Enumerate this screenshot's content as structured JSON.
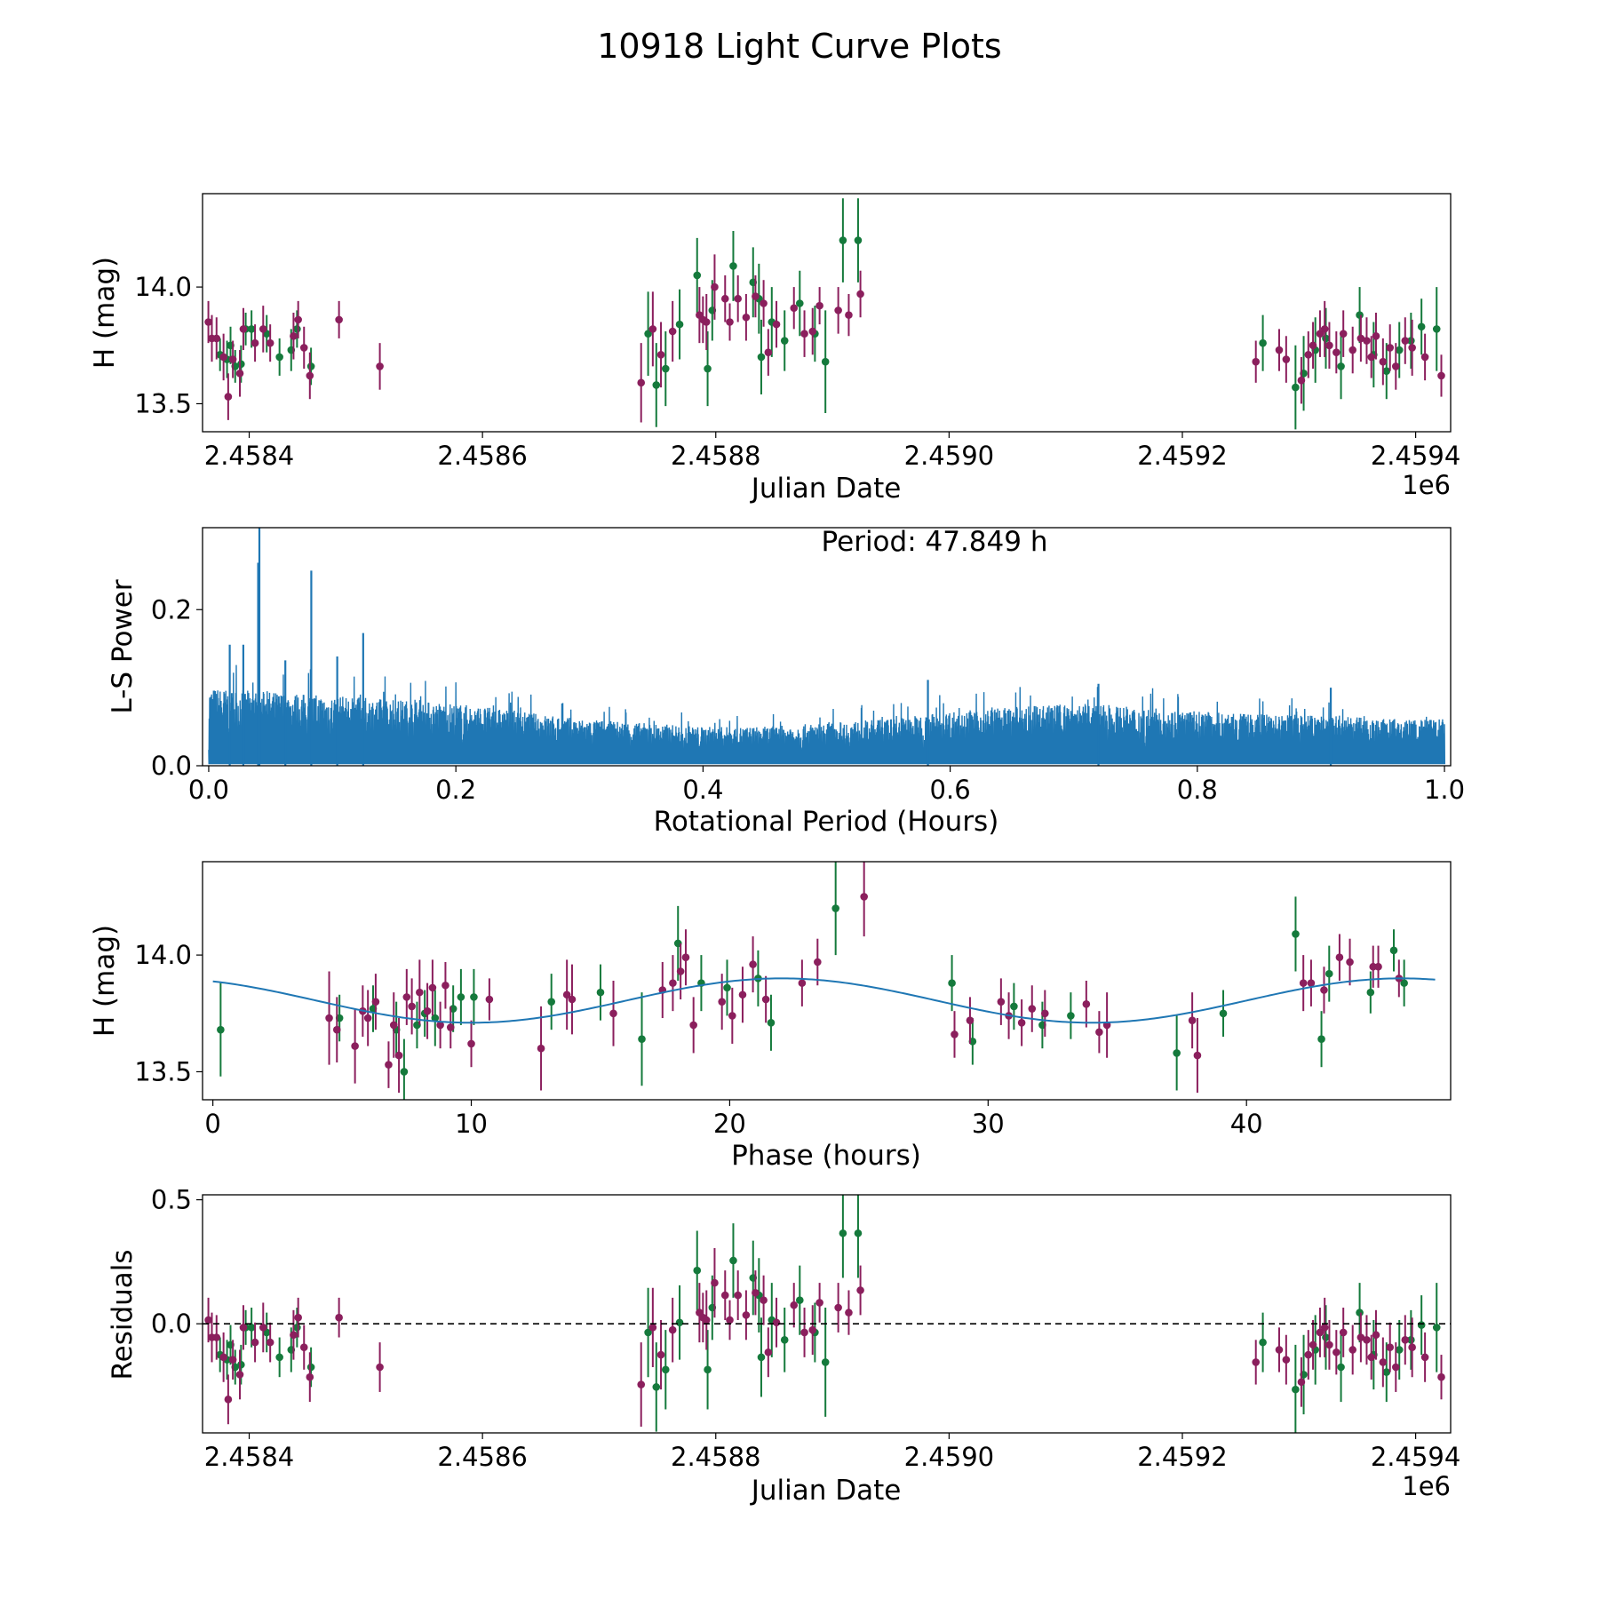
{
  "figure": {
    "suptitle": "10918 Light Curve Plots"
  },
  "colors": {
    "filter_a": "#8b1f5d",
    "filter_b": "#157a3c",
    "model": "#1f77b4",
    "axis": "#000000",
    "background": "#ffffff"
  },
  "chart_data": [
    {
      "id": "lightcurve",
      "type": "scatter",
      "title": "",
      "xlabel": "Julian Date",
      "ylabel": "H (mag)",
      "x_offset_label": "1e6",
      "xlim": [
        2.45836,
        2.45943
      ],
      "ylim": [
        13.38,
        14.4
      ],
      "xticks": [
        2.4584,
        2.4586,
        2.4588,
        2.459,
        2.4592,
        2.4594
      ],
      "xtick_labels": [
        "2.4584",
        "2.4586",
        "2.4588",
        "2.4590",
        "2.4592",
        "2.4594"
      ],
      "yticks": [
        13.5,
        14.0
      ],
      "ytick_labels": [
        "13.5",
        "14.0"
      ],
      "series": [
        {
          "name": "filter_a",
          "x": [
            2.458365,
            2.458368,
            2.458372,
            2.458378,
            2.458382,
            2.458386,
            2.458392,
            2.458395,
            2.458405,
            2.458412,
            2.458418,
            2.458438,
            2.458442,
            2.458447,
            2.458452,
            2.458477,
            2.458512,
            2.458736,
            2.458746,
            2.458753,
            2.458763,
            2.458786,
            2.458789,
            2.458792,
            2.458799,
            2.458808,
            2.458812,
            2.458819,
            2.458826,
            2.458834,
            2.458841,
            2.458845,
            2.458852,
            2.458867,
            2.458876,
            2.458883,
            2.458889,
            2.458905,
            2.458914,
            2.458924,
            2.459263,
            2.459283,
            2.459289,
            2.459302,
            2.459308,
            2.459312,
            2.459318,
            2.459322,
            2.459326,
            2.459332,
            2.459338,
            2.459346,
            2.459353,
            2.459358,
            2.459362,
            2.459366,
            2.459372,
            2.459378,
            2.459383,
            2.459391,
            2.459397,
            2.459408,
            2.459422
          ],
          "y": [
            13.85,
            13.78,
            13.78,
            13.7,
            13.53,
            13.69,
            13.63,
            13.82,
            13.76,
            13.82,
            13.76,
            13.79,
            13.86,
            13.74,
            13.62,
            13.86,
            13.66,
            13.59,
            13.82,
            13.71,
            13.81,
            13.88,
            13.86,
            13.85,
            14.0,
            13.95,
            13.85,
            13.95,
            13.87,
            13.96,
            13.93,
            13.72,
            13.84,
            13.91,
            13.8,
            13.81,
            13.92,
            13.9,
            13.88,
            13.97,
            13.68,
            13.73,
            13.69,
            13.6,
            13.71,
            13.75,
            13.8,
            13.82,
            13.75,
            13.72,
            13.8,
            13.73,
            13.78,
            13.77,
            13.7,
            13.79,
            13.68,
            13.74,
            13.66,
            13.77,
            13.74,
            13.7,
            13.62
          ],
          "err": [
            0.09,
            0.1,
            0.09,
            0.1,
            0.1,
            0.08,
            0.1,
            0.09,
            0.08,
            0.1,
            0.08,
            0.1,
            0.08,
            0.09,
            0.1,
            0.08,
            0.1,
            0.17,
            0.16,
            0.14,
            0.13,
            0.12,
            0.1,
            0.12,
            0.14,
            0.1,
            0.08,
            0.1,
            0.1,
            0.09,
            0.1,
            0.1,
            0.1,
            0.09,
            0.1,
            0.1,
            0.08,
            0.1,
            0.09,
            0.1,
            0.09,
            0.09,
            0.1,
            0.1,
            0.1,
            0.1,
            0.1,
            0.12,
            0.1,
            0.09,
            0.1,
            0.1,
            0.1,
            0.1,
            0.09,
            0.1,
            0.1,
            0.1,
            0.1,
            0.1,
            0.12,
            0.1,
            0.09
          ]
        },
        {
          "name": "filter_b",
          "x": [
            2.458375,
            2.458381,
            2.458384,
            2.458388,
            2.458393,
            2.458397,
            2.458402,
            2.458415,
            2.458426,
            2.458436,
            2.458441,
            2.458453,
            2.458742,
            2.458749,
            2.458757,
            2.458769,
            2.458784,
            2.458793,
            2.458797,
            2.458815,
            2.458832,
            2.458837,
            2.458839,
            2.458848,
            2.458859,
            2.458872,
            2.458885,
            2.458894,
            2.458909,
            2.458922,
            2.459269,
            2.459297,
            2.459304,
            2.459314,
            2.459323,
            2.459336,
            2.459352,
            2.459364,
            2.459375,
            2.459386,
            2.459396,
            2.459405,
            2.459418
          ],
          "y": [
            13.71,
            13.69,
            13.75,
            13.66,
            13.67,
            13.82,
            13.82,
            13.8,
            13.7,
            13.73,
            13.82,
            13.66,
            13.8,
            13.58,
            13.65,
            13.84,
            14.05,
            13.65,
            13.9,
            14.09,
            14.02,
            13.95,
            13.7,
            13.85,
            13.77,
            13.93,
            13.8,
            13.68,
            14.2,
            14.2,
            13.76,
            13.57,
            13.63,
            13.73,
            13.78,
            13.66,
            13.88,
            13.71,
            13.64,
            13.73,
            13.77,
            13.83,
            13.82
          ],
          "err": [
            0.07,
            0.08,
            0.08,
            0.07,
            0.08,
            0.07,
            0.08,
            0.08,
            0.08,
            0.09,
            0.08,
            0.08,
            0.18,
            0.18,
            0.16,
            0.15,
            0.16,
            0.16,
            0.13,
            0.15,
            0.15,
            0.15,
            0.16,
            0.15,
            0.13,
            0.14,
            0.12,
            0.22,
            0.18,
            0.18,
            0.12,
            0.18,
            0.16,
            0.14,
            0.13,
            0.14,
            0.12,
            0.14,
            0.12,
            0.12,
            0.12,
            0.12,
            0.18
          ]
        }
      ]
    },
    {
      "id": "periodogram",
      "type": "line",
      "title": "",
      "annotation": "Period: 47.849 h",
      "xlabel": "Rotational Period (Hours)",
      "ylabel": "L-S Power",
      "xlim": [
        -0.005,
        1.005
      ],
      "ylim": [
        0.0,
        0.305
      ],
      "xticks": [
        0.0,
        0.2,
        0.4,
        0.6,
        0.8,
        1.0
      ],
      "xtick_labels": [
        "0.0",
        "0.2",
        "0.4",
        "0.6",
        "0.8",
        "1.0"
      ],
      "yticks": [
        0.0,
        0.2
      ],
      "ytick_labels": [
        "0.0",
        "0.2"
      ],
      "envelope_x": [
        0.0,
        0.05,
        0.1,
        0.15,
        0.2,
        0.25,
        0.3,
        0.35,
        0.4,
        0.45,
        0.5,
        0.55,
        0.6,
        0.65,
        0.7,
        0.75,
        0.8,
        0.85,
        0.9,
        0.95,
        1.0
      ],
      "envelope_y": [
        0.1,
        0.095,
        0.09,
        0.085,
        0.08,
        0.07,
        0.06,
        0.055,
        0.05,
        0.05,
        0.055,
        0.06,
        0.07,
        0.075,
        0.08,
        0.075,
        0.07,
        0.065,
        0.065,
        0.06,
        0.06
      ],
      "peaks_x": [
        0.041,
        0.04,
        0.083,
        0.125,
        0.017,
        0.028,
        0.104,
        0.062,
        0.582,
        0.72,
        0.908
      ],
      "peaks_y": [
        0.305,
        0.26,
        0.25,
        0.17,
        0.155,
        0.155,
        0.14,
        0.135,
        0.11,
        0.105,
        0.1
      ]
    },
    {
      "id": "phased",
      "type": "scatter",
      "title": "",
      "xlabel": "Phase (hours)",
      "ylabel": "H (mag)",
      "xlim": [
        -0.4,
        47.9
      ],
      "ylim": [
        13.38,
        14.4
      ],
      "xticks": [
        0,
        10,
        20,
        30,
        40
      ],
      "xtick_labels": [
        "0",
        "10",
        "20",
        "30",
        "40"
      ],
      "yticks": [
        13.5,
        14.0
      ],
      "ytick_labels": [
        "13.5",
        "14.0"
      ],
      "model": {
        "mean": 13.805,
        "amplitude": 0.095,
        "period": 24.0,
        "phase_shift": 22.0
      },
      "series": [
        {
          "name": "filter_a",
          "x": [
            4.5,
            4.8,
            5.5,
            5.8,
            6.0,
            6.3,
            6.8,
            7.0,
            7.2,
            7.5,
            7.7,
            8.0,
            8.3,
            8.5,
            8.8,
            9.0,
            9.2,
            10.0,
            10.7,
            12.7,
            13.7,
            13.9,
            15.5,
            17.4,
            17.8,
            18.1,
            18.3,
            18.6,
            19.7,
            20.1,
            20.5,
            20.9,
            21.4,
            22.8,
            23.4,
            25.2,
            28.7,
            29.3,
            30.5,
            30.8,
            31.3,
            31.7,
            32.2,
            33.8,
            34.3,
            34.6,
            37.9,
            38.1,
            42.2,
            42.5,
            43.0,
            43.6,
            44.0,
            44.9,
            45.1,
            45.9
          ],
          "y": [
            13.73,
            13.68,
            13.61,
            13.76,
            13.73,
            13.8,
            13.53,
            13.7,
            13.57,
            13.82,
            13.78,
            13.84,
            13.76,
            13.86,
            13.7,
            13.87,
            13.69,
            13.62,
            13.81,
            13.6,
            13.83,
            13.81,
            13.75,
            13.85,
            13.88,
            13.93,
            13.99,
            13.7,
            13.8,
            13.74,
            13.83,
            13.96,
            13.81,
            13.88,
            13.97,
            14.25,
            13.66,
            13.72,
            13.8,
            13.74,
            13.71,
            13.77,
            13.75,
            13.79,
            13.67,
            13.7,
            13.72,
            13.57,
            13.88,
            13.88,
            13.85,
            13.99,
            13.97,
            13.95,
            13.95,
            13.9
          ],
          "err": [
            0.2,
            0.14,
            0.16,
            0.11,
            0.12,
            0.12,
            0.1,
            0.14,
            0.16,
            0.12,
            0.12,
            0.14,
            0.12,
            0.12,
            0.1,
            0.1,
            0.09,
            0.1,
            0.09,
            0.18,
            0.15,
            0.15,
            0.14,
            0.12,
            0.12,
            0.12,
            0.12,
            0.12,
            0.12,
            0.12,
            0.12,
            0.12,
            0.1,
            0.1,
            0.1,
            0.17,
            0.1,
            0.1,
            0.1,
            0.1,
            0.1,
            0.1,
            0.1,
            0.1,
            0.09,
            0.14,
            0.12,
            0.16,
            0.12,
            0.1,
            0.1,
            0.1,
            0.1,
            0.09,
            0.09,
            0.08
          ]
        },
        {
          "name": "filter_b",
          "x": [
            0.3,
            4.9,
            6.2,
            7.1,
            7.4,
            7.9,
            8.2,
            8.6,
            9.3,
            9.6,
            10.1,
            13.1,
            15.0,
            16.6,
            18.0,
            18.9,
            19.9,
            21.1,
            21.6,
            24.1,
            28.6,
            29.4,
            31.0,
            32.1,
            33.2,
            37.3,
            39.1,
            41.9,
            42.9,
            43.2,
            44.8,
            45.7,
            46.1
          ],
          "y": [
            13.68,
            13.73,
            13.77,
            13.68,
            13.5,
            13.7,
            13.75,
            13.73,
            13.77,
            13.82,
            13.82,
            13.8,
            13.84,
            13.64,
            14.05,
            13.88,
            13.86,
            13.9,
            13.71,
            14.2,
            13.88,
            13.63,
            13.78,
            13.7,
            13.74,
            13.58,
            13.75,
            14.09,
            13.64,
            13.92,
            13.84,
            14.02,
            13.88
          ]
        },
        {
          "name": "filter_b_err",
          "err": [
            0.2,
            0.1,
            0.1,
            0.12,
            0.14,
            0.1,
            0.1,
            0.12,
            0.1,
            0.12,
            0.12,
            0.12,
            0.12,
            0.2,
            0.16,
            0.12,
            0.12,
            0.12,
            0.12,
            0.2,
            0.12,
            0.1,
            0.1,
            0.1,
            0.1,
            0.16,
            0.1,
            0.16,
            0.12,
            0.12,
            0.09,
            0.09,
            0.1
          ]
        }
      ]
    },
    {
      "id": "residuals",
      "type": "scatter",
      "title": "",
      "xlabel": "Julian Date",
      "ylabel": "Residuals",
      "x_offset_label": "1e6",
      "xlim": [
        2.45836,
        2.45943
      ],
      "ylim": [
        -0.44,
        0.52
      ],
      "xticks": [
        2.4584,
        2.4586,
        2.4588,
        2.459,
        2.4592,
        2.4594
      ],
      "xtick_labels": [
        "2.4584",
        "2.4586",
        "2.4588",
        "2.4590",
        "2.4592",
        "2.4594"
      ],
      "yticks": [
        0.0,
        0.5
      ],
      "ytick_labels": [
        "0.0",
        "0.5"
      ],
      "zero_line": true
    }
  ]
}
